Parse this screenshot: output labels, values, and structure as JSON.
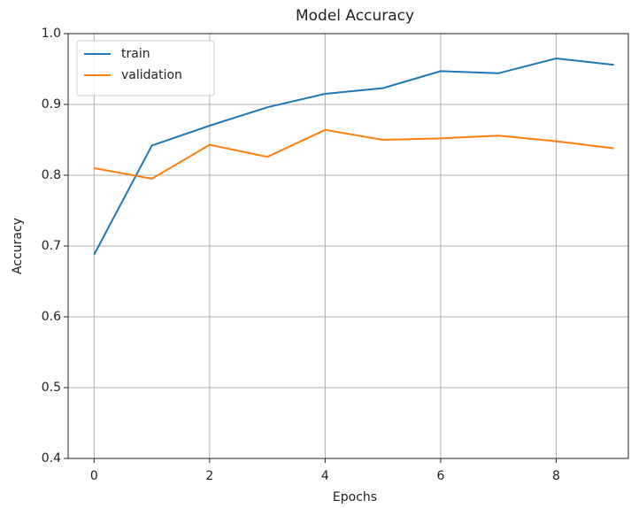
{
  "chart_data": {
    "type": "line",
    "title": "Model Accuracy",
    "x_label": "Epochs",
    "y_label": "Accuracy",
    "x": [
      0,
      1,
      2,
      3,
      4,
      5,
      6,
      7,
      8,
      9
    ],
    "series": [
      {
        "name": "train",
        "color": "#1f77b4",
        "values": [
          0.688,
          0.842,
          0.87,
          0.896,
          0.915,
          0.923,
          0.947,
          0.944,
          0.965,
          0.956
        ]
      },
      {
        "name": "validation",
        "color": "#ff7f0e",
        "values": [
          0.81,
          0.795,
          0.843,
          0.826,
          0.864,
          0.85,
          0.852,
          0.856,
          0.848,
          0.838
        ]
      }
    ],
    "xlim": [
      -0.45,
      9.25
    ],
    "xticks": [
      0,
      2,
      4,
      6,
      8
    ],
    "ylim": [
      0.4,
      1.0
    ],
    "yticks": [
      0.4,
      0.5,
      0.6,
      0.7,
      0.8,
      0.9,
      {
        "value": 1.0,
        "label": "1.0"
      }
    ],
    "grid": true,
    "legend": "upper left"
  }
}
